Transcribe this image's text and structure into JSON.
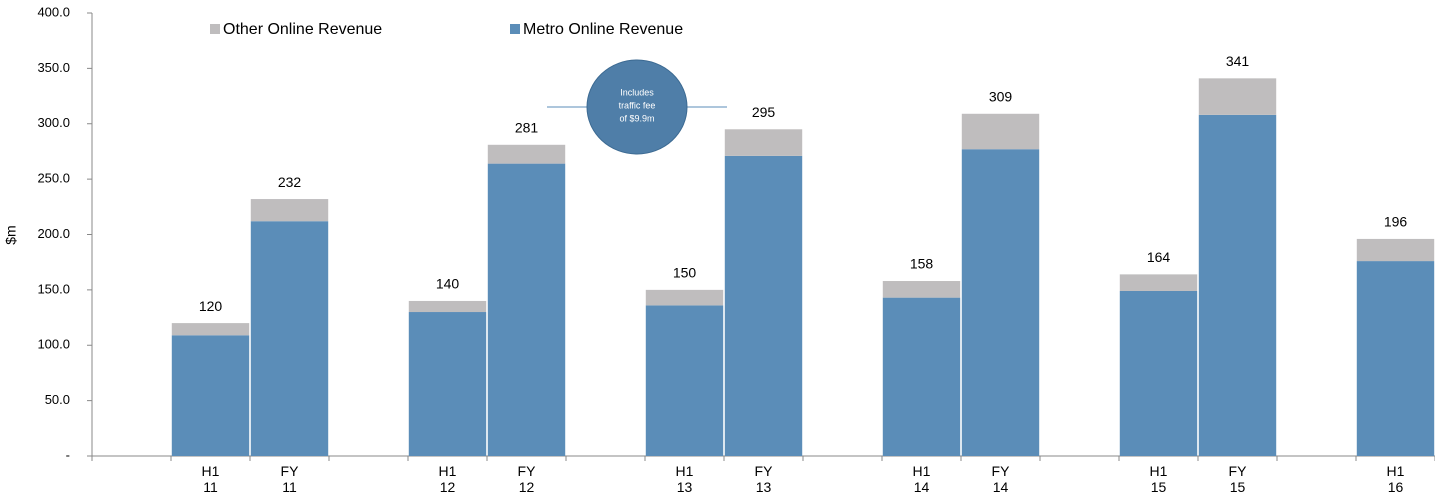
{
  "chart_data": {
    "type": "stacked_bar",
    "y_axis_label": "$m",
    "categories": [
      null,
      "H1 11",
      "FY 11",
      null,
      "H1 12",
      "FY 12",
      null,
      "H1 13",
      "FY 13",
      null,
      "H1 14",
      "FY 14",
      null,
      "H1 15",
      "FY 15",
      null,
      "H1 16"
    ],
    "series": [
      {
        "name": "Metro Online Revenue",
        "color": "#5b8db8",
        "values": [
          null,
          109,
          212,
          null,
          130,
          264,
          null,
          136,
          271,
          null,
          143,
          277,
          null,
          149,
          308,
          null,
          176
        ]
      },
      {
        "name": "Other Online Revenue",
        "color": "#bfbdbe",
        "values": [
          null,
          11,
          20,
          null,
          10,
          17,
          null,
          14,
          24,
          null,
          15,
          32,
          null,
          15,
          33,
          null,
          20
        ]
      }
    ],
    "totals": [
      null,
      120,
      232,
      null,
      140,
      281,
      null,
      150,
      295,
      null,
      158,
      309,
      null,
      164,
      341,
      null,
      196
    ],
    "ylim": [
      0,
      400
    ],
    "yticks": [
      {
        "value": 0,
        "label": "-"
      },
      {
        "value": 50,
        "label": "50.0"
      },
      {
        "value": 100,
        "label": "100.0"
      },
      {
        "value": 150,
        "label": "150.0"
      },
      {
        "value": 200,
        "label": "200.0"
      },
      {
        "value": 250,
        "label": "250.0"
      },
      {
        "value": 300,
        "label": "300.0"
      },
      {
        "value": 350,
        "label": "350.0"
      },
      {
        "value": 400,
        "label": "400.0"
      }
    ],
    "annotation": [
      "Includes",
      "traffic fee",
      "of $9.9m"
    ]
  }
}
